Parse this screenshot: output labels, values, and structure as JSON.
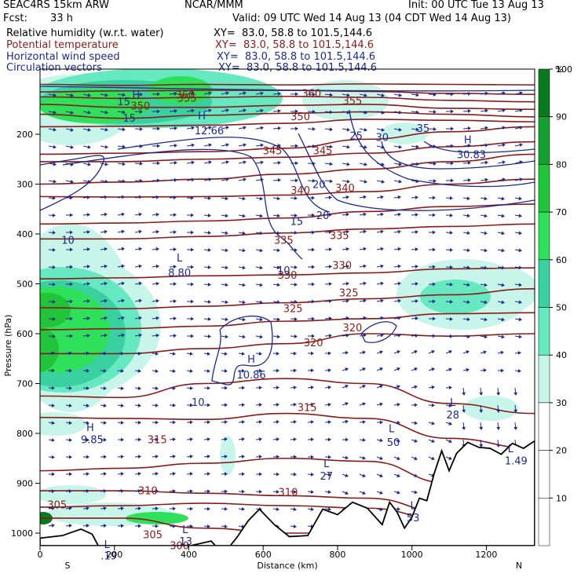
{
  "header": {
    "model": "SEAC4RS 15km ARW",
    "center": "NCAR/MMM",
    "init": "Init: 00 UTC Tue 13 Aug 13",
    "fcst_label": "Fcst:",
    "fcst_value": "33 h",
    "valid": "Valid: 09 UTC Wed 14 Aug 13 (04 CDT Wed 14 Aug 13)"
  },
  "fields": [
    {
      "name": "Relative humidity (w.r.t. water)",
      "xy": "XY=  83.0, 58.8 to 101.5,144.6",
      "color": "#000000"
    },
    {
      "name": "Potential temperature",
      "xy": "XY=  83.0, 58.8 to 101.5,144.6",
      "color": "#8b1a1a"
    },
    {
      "name": "Horizontal wind speed",
      "xy": "XY=  83.0, 58.8 to 101.5,144.6",
      "color": "#1c2a8c"
    },
    {
      "name": "Circulation vectors",
      "xy": "XY=  83.0, 58.8 to 101.5,144.6",
      "color": "#1c2a8c"
    }
  ],
  "colorbar": {
    "unit": "%",
    "levels": [
      10,
      20,
      30,
      40,
      50,
      60,
      70,
      80,
      90,
      100
    ],
    "colors": [
      "#ffffff",
      "#ffffff",
      "#ffffff",
      "#c8f5ea",
      "#66e8c0",
      "#3ad1a0",
      "#2ee05a",
      "#22c43a",
      "#12a030",
      "#0a7a20"
    ]
  },
  "chart_data": {
    "type": "heatmap",
    "title": "SEAC4RS 15km ARW",
    "xlabel": "Distance (km)",
    "ylabel": "Pressure (hPa)",
    "xlim": [
      0,
      1330
    ],
    "ylim": [
      1050,
      100
    ],
    "x_ticks": [
      0,
      200,
      400,
      600,
      800,
      1000,
      1200
    ],
    "y_ticks": [
      200,
      300,
      400,
      500,
      600,
      700,
      800,
      900,
      1000
    ],
    "x_endpoints": {
      "left": "S",
      "right": "N"
    },
    "theta_labels": [
      {
        "text": "360",
        "x": 390,
        "p": 128
      },
      {
        "text": "360",
        "x": 730,
        "p": 125
      },
      {
        "text": "355",
        "x": 395,
        "p": 135
      },
      {
        "text": "355",
        "x": 840,
        "p": 140
      },
      {
        "text": "350",
        "x": 270,
        "p": 150
      },
      {
        "text": "350",
        "x": 700,
        "p": 172
      },
      {
        "text": "345",
        "x": 625,
        "p": 240
      },
      {
        "text": "345",
        "x": 760,
        "p": 240
      },
      {
        "text": "340",
        "x": 700,
        "p": 320
      },
      {
        "text": "340",
        "x": 820,
        "p": 315
      },
      {
        "text": "335",
        "x": 655,
        "p": 420
      },
      {
        "text": "335",
        "x": 805,
        "p": 410
      },
      {
        "text": "330",
        "x": 665,
        "p": 490
      },
      {
        "text": "330",
        "x": 812,
        "p": 470
      },
      {
        "text": "325",
        "x": 680,
        "p": 557
      },
      {
        "text": "325",
        "x": 830,
        "p": 525
      },
      {
        "text": "320",
        "x": 735,
        "p": 625
      },
      {
        "text": "320",
        "x": 840,
        "p": 595
      },
      {
        "text": "315",
        "x": 718,
        "p": 755
      },
      {
        "text": "315",
        "x": 315,
        "p": 820
      },
      {
        "text": "310",
        "x": 290,
        "p": 922
      },
      {
        "text": "310",
        "x": 667,
        "p": 925
      },
      {
        "text": "305",
        "x": 46,
        "p": 950
      },
      {
        "text": "305",
        "x": 303,
        "p": 1010
      },
      {
        "text": "300",
        "x": 375,
        "p": 1032
      }
    ],
    "wind_labels": [
      {
        "text": "15",
        "x": 225,
        "p": 142
      },
      {
        "text": "15",
        "x": 240,
        "p": 175
      },
      {
        "text": "25",
        "x": 850,
        "p": 210
      },
      {
        "text": "30",
        "x": 920,
        "p": 213
      },
      {
        "text": "35",
        "x": 1030,
        "p": 195
      },
      {
        "text": "20",
        "x": 750,
        "p": 308
      },
      {
        "text": "20",
        "x": 760,
        "p": 370
      },
      {
        "text": "15",
        "x": 690,
        "p": 382
      },
      {
        "text": "10",
        "x": 75,
        "p": 420
      },
      {
        "text": "10",
        "x": 655,
        "p": 480
      },
      {
        "text": "10",
        "x": 425,
        "p": 745
      }
    ],
    "extrema": [
      {
        "text": "H",
        "x": 258,
        "p": 128
      },
      {
        "text": "H",
        "x": 435,
        "p": 170
      },
      {
        "text": "12.66",
        "x": 455,
        "p": 200
      },
      {
        "text": "H",
        "x": 1150,
        "p": 218
      },
      {
        "text": "30.83",
        "x": 1160,
        "p": 248
      },
      {
        "text": "L",
        "x": 375,
        "p": 455
      },
      {
        "text": "8.80",
        "x": 375,
        "p": 485
      },
      {
        "text": "H",
        "x": 568,
        "p": 658
      },
      {
        "text": "10.86",
        "x": 568,
        "p": 690
      },
      {
        "text": "H",
        "x": 135,
        "p": 795
      },
      {
        "text": "9.85",
        "x": 140,
        "p": 820
      },
      {
        "text": "L",
        "x": 1110,
        "p": 745
      },
      {
        "text": "28",
        "x": 1110,
        "p": 770
      },
      {
        "text": "L",
        "x": 945,
        "p": 798
      },
      {
        "text": "50",
        "x": 950,
        "p": 825
      },
      {
        "text": "L",
        "x": 1265,
        "p": 838
      },
      {
        "text": "1.49",
        "x": 1280,
        "p": 862
      },
      {
        "text": "L",
        "x": 770,
        "p": 868
      },
      {
        "text": "27",
        "x": 770,
        "p": 893
      },
      {
        "text": "L",
        "x": 1003,
        "p": 952
      },
      {
        "text": "53",
        "x": 1003,
        "p": 976
      },
      {
        "text": "L",
        "x": 390,
        "p": 1000
      },
      {
        "text": "13",
        "x": 392,
        "p": 1024
      },
      {
        "text": "L",
        "x": 180,
        "p": 1030
      },
      {
        "text": ".19",
        "x": 185,
        "p": 1053
      }
    ],
    "terrain_pressure": [
      [
        0,
        1010
      ],
      [
        60,
        1005
      ],
      [
        110,
        992
      ],
      [
        140,
        1002
      ],
      [
        160,
        1030
      ],
      [
        180,
        1030
      ],
      [
        230,
        1036
      ],
      [
        280,
        1036
      ],
      [
        350,
        1034
      ],
      [
        400,
        1026
      ],
      [
        460,
        1016
      ],
      [
        480,
        1032
      ],
      [
        500,
        1036
      ],
      [
        530,
        1008
      ],
      [
        560,
        975
      ],
      [
        590,
        952
      ],
      [
        630,
        983
      ],
      [
        670,
        1007
      ],
      [
        720,
        1005
      ],
      [
        760,
        952
      ],
      [
        800,
        963
      ],
      [
        840,
        938
      ],
      [
        880,
        950
      ],
      [
        920,
        983
      ],
      [
        940,
        938
      ],
      [
        960,
        958
      ],
      [
        980,
        990
      ],
      [
        1000,
        968
      ],
      [
        1020,
        930
      ],
      [
        1040,
        935
      ],
      [
        1060,
        880
      ],
      [
        1080,
        835
      ],
      [
        1100,
        875
      ],
      [
        1120,
        840
      ],
      [
        1150,
        818
      ],
      [
        1180,
        828
      ],
      [
        1210,
        830
      ],
      [
        1240,
        842
      ],
      [
        1270,
        820
      ],
      [
        1300,
        830
      ],
      [
        1330,
        815
      ]
    ]
  }
}
